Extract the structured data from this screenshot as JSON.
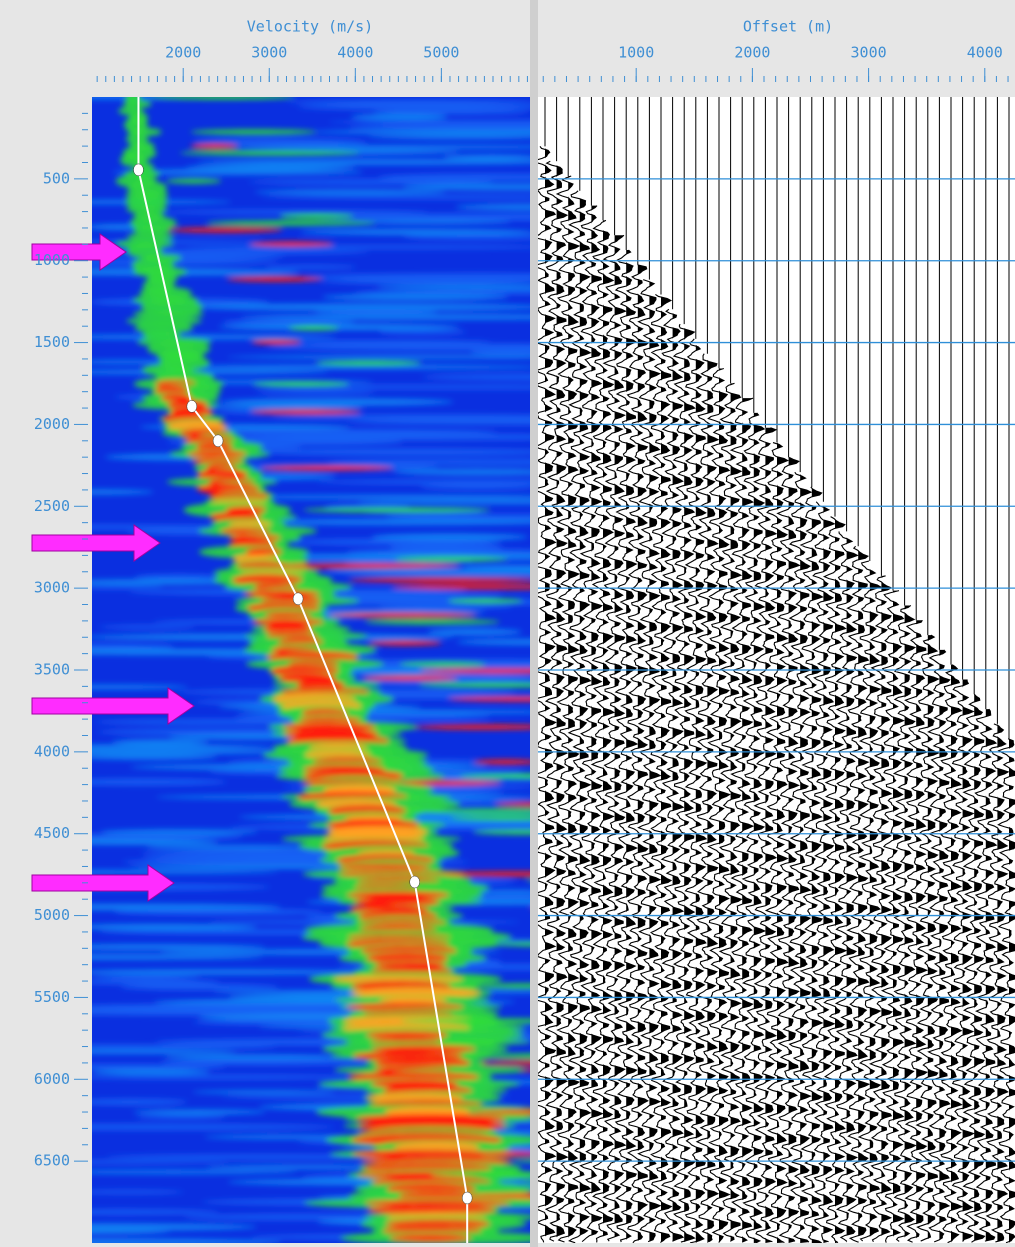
{
  "chart_data": [
    {
      "type": "line",
      "x_label": "Velocity (m/s)",
      "xlim": [
        940,
        6030
      ],
      "xticks": [
        2000,
        3000,
        4000,
        5000
      ],
      "ylim": [
        0,
        7000
      ],
      "yticks": [
        500,
        1000,
        1500,
        2000,
        2500,
        3000,
        3500,
        4000,
        4500,
        5000,
        5500,
        6000,
        6500
      ],
      "series": [
        {
          "color": "#ffffff",
          "x": [
            1480,
            2100,
            2405,
            3335,
            4690,
            5300
          ],
          "values": [
            445,
            1890,
            2100,
            3065,
            4795,
            6725
          ]
        }
      ]
    },
    {
      "type": "wiggle",
      "x_label": "Offset (m)",
      "xlim": [
        155,
        4260
      ],
      "xticks": [
        1000,
        2000,
        3000,
        4000
      ],
      "ylim": [
        0,
        7000
      ],
      "yticks": [
        500,
        1000,
        1500,
        2000,
        2500,
        3000,
        3500,
        4000,
        4500,
        5000,
        5500,
        6000,
        6500
      ],
      "grid": true,
      "grid_color": "#2f8fd8"
    }
  ]
}
